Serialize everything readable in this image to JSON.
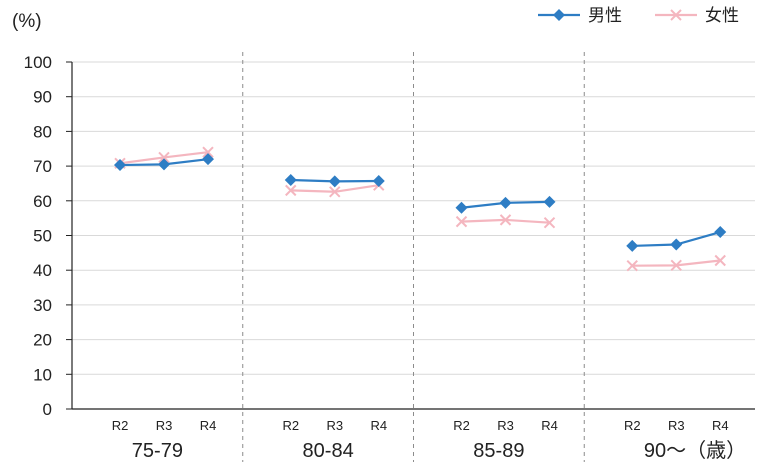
{
  "chart_data": {
    "type": "line",
    "y_unit_label": "(%)",
    "ylim": [
      0,
      100
    ],
    "yticks": [
      0,
      10,
      20,
      30,
      40,
      50,
      60,
      70,
      80,
      90,
      100
    ],
    "grid": true,
    "legend_position": "top-right",
    "groups": [
      {
        "label": "75-79",
        "periods": [
          "R2",
          "R3",
          "R4"
        ]
      },
      {
        "label": "80-84",
        "periods": [
          "R2",
          "R3",
          "R4"
        ]
      },
      {
        "label": "85-89",
        "periods": [
          "R2",
          "R3",
          "R4"
        ]
      },
      {
        "label": "90〜（歳）",
        "periods": [
          "R2",
          "R3",
          "R4"
        ]
      }
    ],
    "series": [
      {
        "name": "男性",
        "color": "#2e7dc4",
        "marker": "diamond",
        "values": [
          [
            70.3,
            70.5,
            72.0
          ],
          [
            66.0,
            65.6,
            65.7
          ],
          [
            58.0,
            59.4,
            59.7
          ],
          [
            47.0,
            47.4,
            51.0
          ]
        ]
      },
      {
        "name": "女性",
        "color": "#f4b6bf",
        "marker": "x",
        "values": [
          [
            70.8,
            72.5,
            74.0
          ],
          [
            63.0,
            62.6,
            64.5
          ],
          [
            54.0,
            54.5,
            53.7
          ],
          [
            41.3,
            41.4,
            42.8
          ]
        ]
      }
    ]
  }
}
